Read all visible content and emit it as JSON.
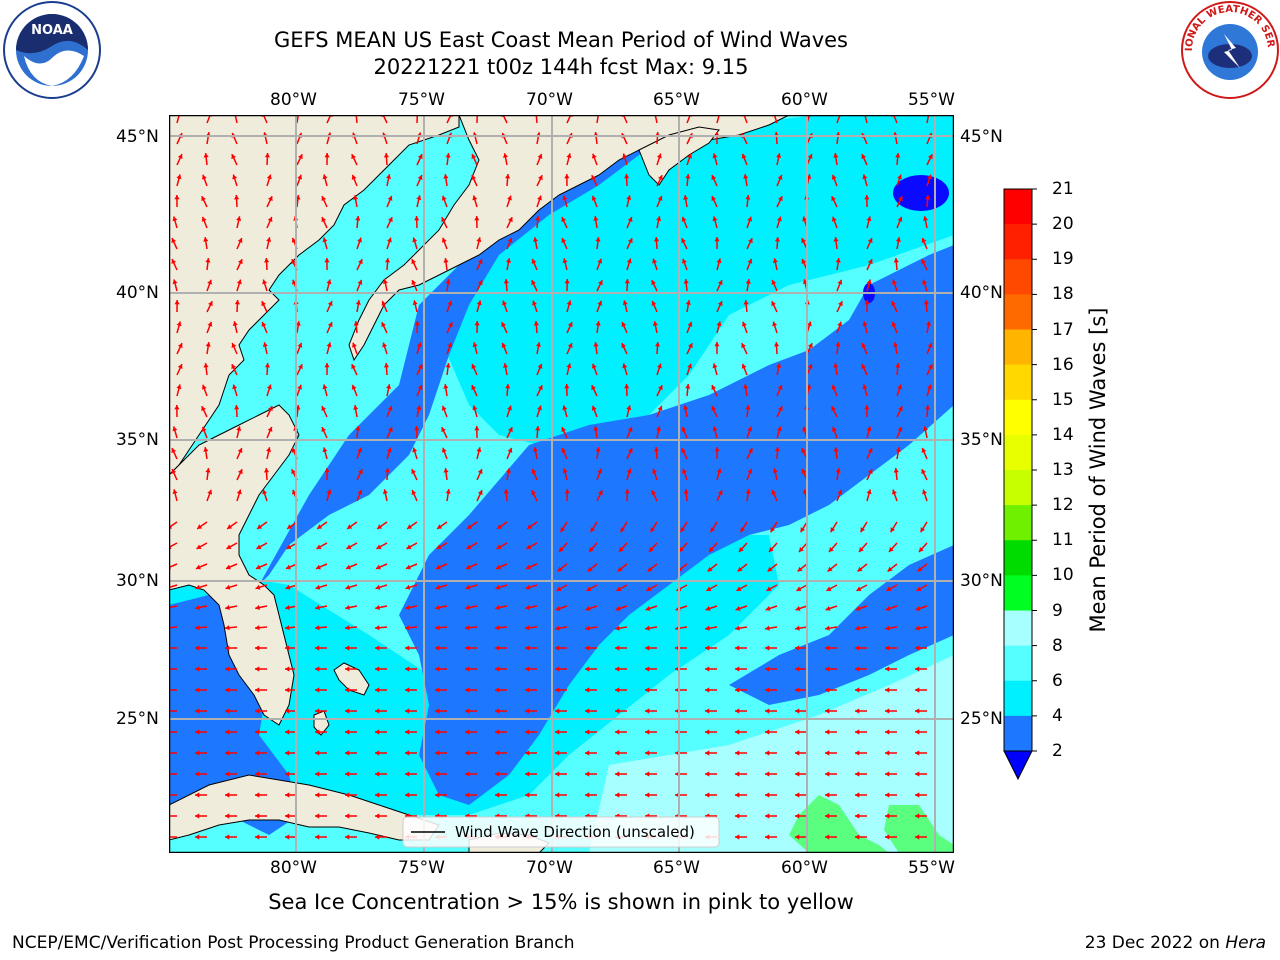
{
  "header": {
    "title_line1": "GEFS MEAN US East Coast Mean Period of Wind Waves",
    "title_line2": "20221221 t00z 144h fcst   Max: 9.15"
  },
  "map": {
    "lon_labels": [
      "80°W",
      "75°W",
      "70°W",
      "65°W",
      "60°W",
      "55°W"
    ],
    "lat_labels": [
      "45°N",
      "40°N",
      "35°N",
      "30°N",
      "25°N"
    ],
    "legend_label": "Wind Wave Direction (unscaled)",
    "colors": {
      "land": "#efecdc",
      "band_2_4": "#1e78ff",
      "band_4_6": "#00f0ff",
      "band_6_8": "#55ffff",
      "band_8_9": "#a8ffff",
      "band_9_10": "#5aff80",
      "below_2": "#0a0aff",
      "arrows": "#ff0000",
      "grid": "#b0b0b0"
    }
  },
  "colorbar": {
    "title": "Mean Period of Wind Waves [s]",
    "labels": [
      "21",
      "20",
      "19",
      "18",
      "17",
      "16",
      "15",
      "14",
      "13",
      "12",
      "11",
      "10",
      "9",
      "8",
      "6",
      "4",
      "2"
    ],
    "colors": [
      "#ff0000",
      "#ff2000",
      "#ff4800",
      "#ff6a00",
      "#ff8c00",
      "#ffb400",
      "#ffd800",
      "#ffff00",
      "#e8ff00",
      "#c8ff00",
      "#6ef000",
      "#00dc00",
      "#00ff20",
      "#5aff80",
      "#a8ffff",
      "#55ffff",
      "#00f0ff",
      "#1e78ff",
      "#0000ff"
    ]
  },
  "caption": "Sea Ice Concentration > 15% is shown in pink to yellow",
  "footer": {
    "left": "NCEP/EMC/Verification Post Processing Product Generation Branch",
    "right_prefix": "23 Dec 2022 on ",
    "right_machine": "Hera"
  },
  "logos": {
    "noaa_text": "NOAA",
    "nws_text": "NATIONAL WEATHER SERVICE"
  }
}
